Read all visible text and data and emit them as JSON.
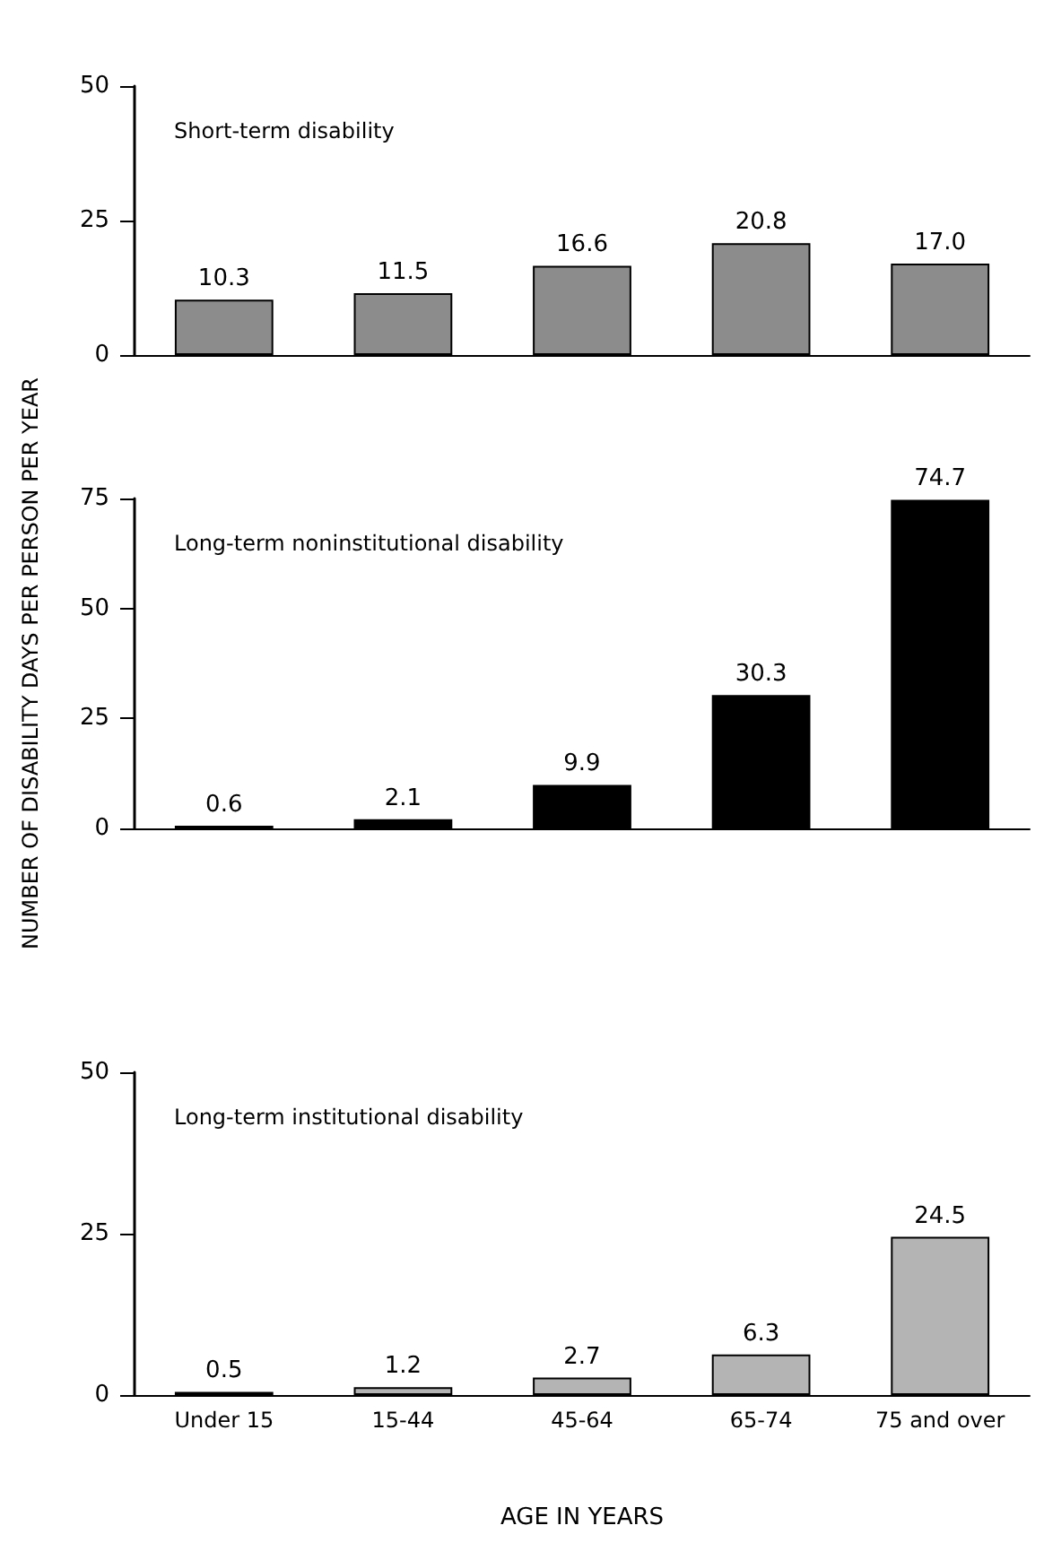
{
  "chart_data": [
    {
      "type": "bar",
      "title": "Short-term disability",
      "categories": [
        "Under 15",
        "15-44",
        "45-64",
        "65-74",
        "75 and over"
      ],
      "values": [
        10.3,
        11.5,
        16.6,
        20.8,
        17.0
      ],
      "value_labels": [
        "10.3",
        "11.5",
        "16.6",
        "20.8",
        "17.0"
      ],
      "color": "#8c8c8c",
      "ylim": [
        0,
        50
      ],
      "yticks": [
        0,
        25,
        50
      ],
      "tick_labels": "y",
      "grid": false
    },
    {
      "type": "bar",
      "title": "Long-term noninstitutional disability",
      "ylabel": "NUMBER OF DISABILITY DAYS PER PERSON PER YEAR",
      "categories": [
        "Under 15",
        "15-44",
        "45-64",
        "65-74",
        "75 and over"
      ],
      "values": [
        0.6,
        2.1,
        9.9,
        30.3,
        74.7
      ],
      "color": "#000000",
      "ylim": [
        0,
        75
      ],
      "yticks": [
        0,
        25,
        50,
        75
      ],
      "data_labels": true,
      "tick_labels": "y",
      "grid": false
    },
    {
      "type": "bar",
      "title": "Long-term institutional disability",
      "xlabel": "AGE IN YEARS",
      "categories": [
        "Under 15",
        "15-44",
        "45-64",
        "65-74",
        "75 and over"
      ],
      "values": [
        0.5,
        1.2,
        2.7,
        6.3,
        24.5
      ],
      "color": "#b4b4b4",
      "ylim": [
        0,
        50
      ],
      "yticks": [
        0,
        25,
        50
      ],
      "data_labels": true,
      "grid": false
    }
  ]
}
